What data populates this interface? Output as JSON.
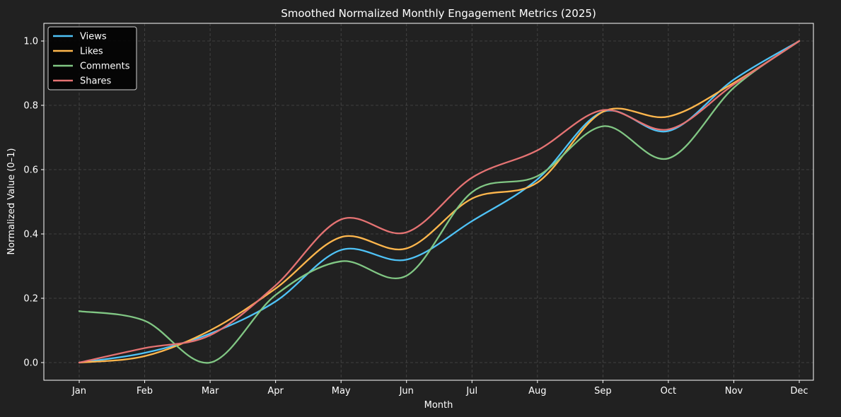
{
  "chart_data": {
    "type": "line",
    "title": "Smoothed Normalized Monthly Engagement Metrics (2025)",
    "xlabel": "Month",
    "ylabel": "Normalized Value (0–1)",
    "categories": [
      "Jan",
      "Feb",
      "Mar",
      "Apr",
      "May",
      "Jun",
      "Jul",
      "Aug",
      "Sep",
      "Oct",
      "Nov",
      "Dec"
    ],
    "ylim": [
      -0.055,
      1.055
    ],
    "yticks": [
      0.0,
      0.2,
      0.4,
      0.6,
      0.8,
      1.0
    ],
    "ytick_labels": [
      "0.0",
      "0.2",
      "0.4",
      "0.6",
      "0.8",
      "1.0"
    ],
    "grid": true,
    "legend_position": "top-left",
    "series": [
      {
        "name": "Views",
        "color": "#4fc3f7",
        "values": [
          0.0,
          0.03,
          0.09,
          0.19,
          0.35,
          0.32,
          0.44,
          0.57,
          0.78,
          0.72,
          0.88,
          1.0
        ]
      },
      {
        "name": "Likes",
        "color": "#ffb74d",
        "values": [
          0.0,
          0.02,
          0.1,
          0.23,
          0.39,
          0.355,
          0.51,
          0.56,
          0.78,
          0.765,
          0.87,
          1.0
        ]
      },
      {
        "name": "Comments",
        "color": "#81c784",
        "values": [
          0.16,
          0.13,
          0.0,
          0.21,
          0.315,
          0.27,
          0.53,
          0.58,
          0.735,
          0.635,
          0.855,
          1.0
        ]
      },
      {
        "name": "Shares",
        "color": "#e57373",
        "values": [
          0.0,
          0.045,
          0.085,
          0.24,
          0.445,
          0.405,
          0.575,
          0.66,
          0.785,
          0.725,
          0.865,
          1.0
        ]
      }
    ]
  }
}
